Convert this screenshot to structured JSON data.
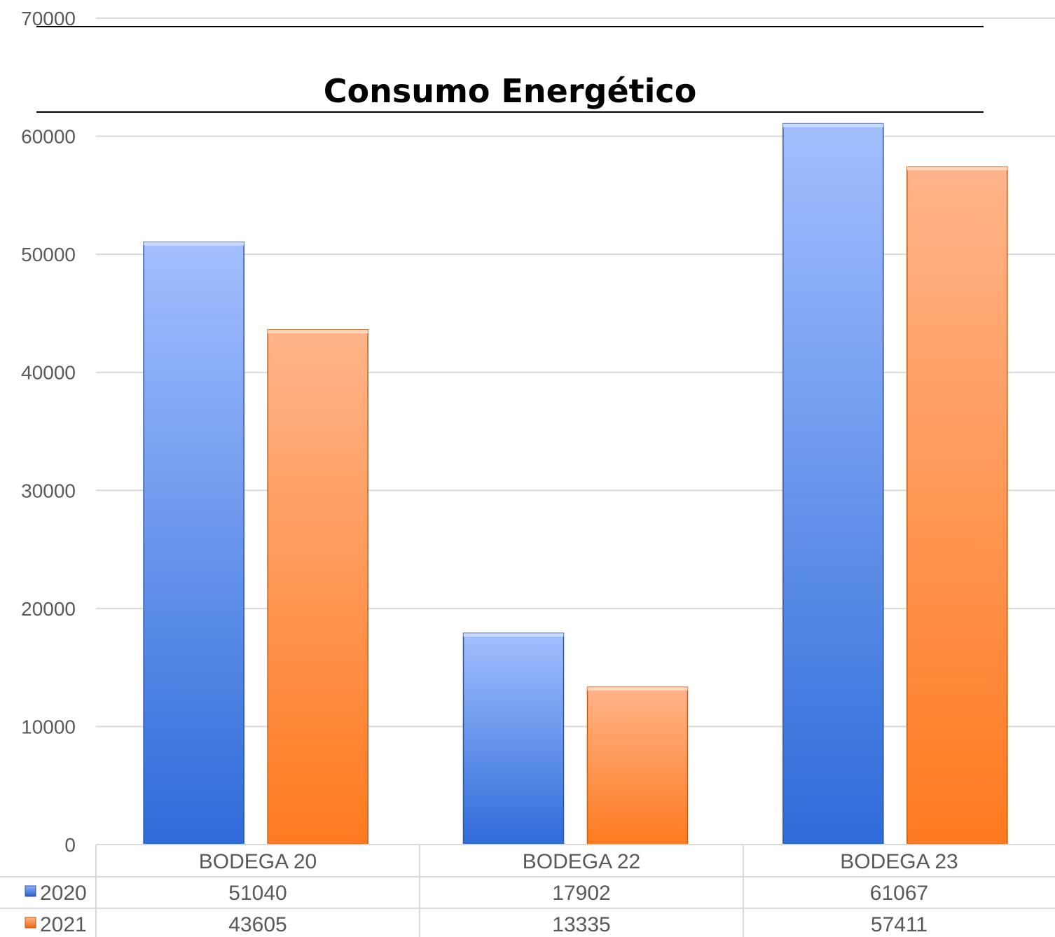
{
  "chart_data": {
    "type": "bar",
    "title": "Consumo Energético",
    "categories": [
      "BODEGA 20",
      "BODEGA 22",
      "BODEGA 23"
    ],
    "series": [
      {
        "name": "2020",
        "values": [
          51040,
          17902,
          61067
        ],
        "color": "#4472C4"
      },
      {
        "name": "2021",
        "values": [
          43605,
          13335,
          57411
        ],
        "color": "#ED7D31"
      }
    ],
    "ylim": [
      0,
      70000
    ],
    "yticks": [
      0,
      10000,
      20000,
      30000,
      40000,
      50000,
      60000,
      70000
    ],
    "grid": true,
    "legend": "data table"
  }
}
